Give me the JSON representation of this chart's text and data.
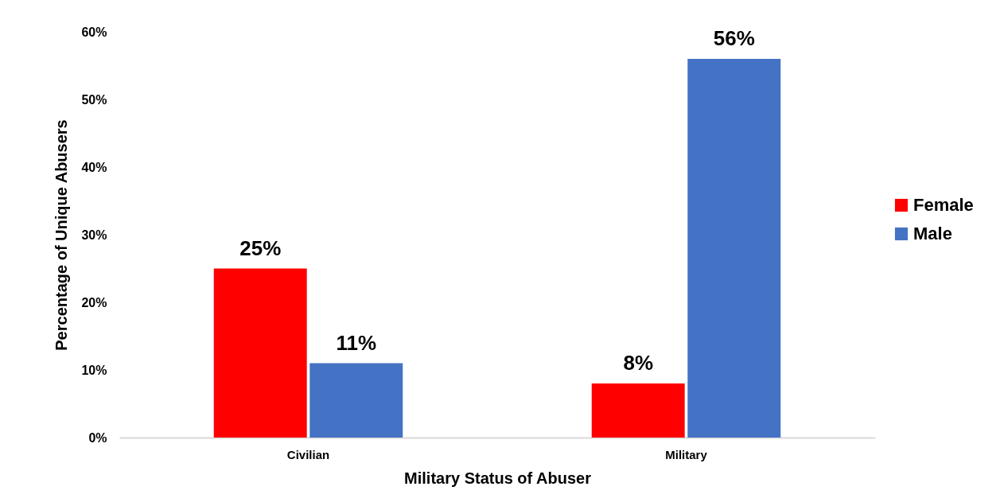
{
  "chart_data": {
    "type": "bar",
    "xlabel": "Military Status of Abuser",
    "ylabel": "Percentage of Unique Abusers",
    "categories": [
      "Civilian",
      "Military"
    ],
    "series": [
      {
        "name": "Female",
        "color": "#ff0000",
        "values": [
          25,
          8
        ],
        "value_labels": [
          "25%",
          "8%"
        ]
      },
      {
        "name": "Male",
        "color": "#4472c4",
        "values": [
          11,
          56
        ],
        "value_labels": [
          "11%",
          "56%"
        ]
      }
    ],
    "ylim": [
      0,
      60
    ],
    "yticks": [
      {
        "value": 0,
        "label": "0%"
      },
      {
        "value": 10,
        "label": "10%"
      },
      {
        "value": 20,
        "label": "20%"
      },
      {
        "value": 30,
        "label": "30%"
      },
      {
        "value": 40,
        "label": "40%"
      },
      {
        "value": 50,
        "label": "50%"
      },
      {
        "value": 60,
        "label": "60%"
      }
    ],
    "grid": false,
    "legend": "right"
  }
}
